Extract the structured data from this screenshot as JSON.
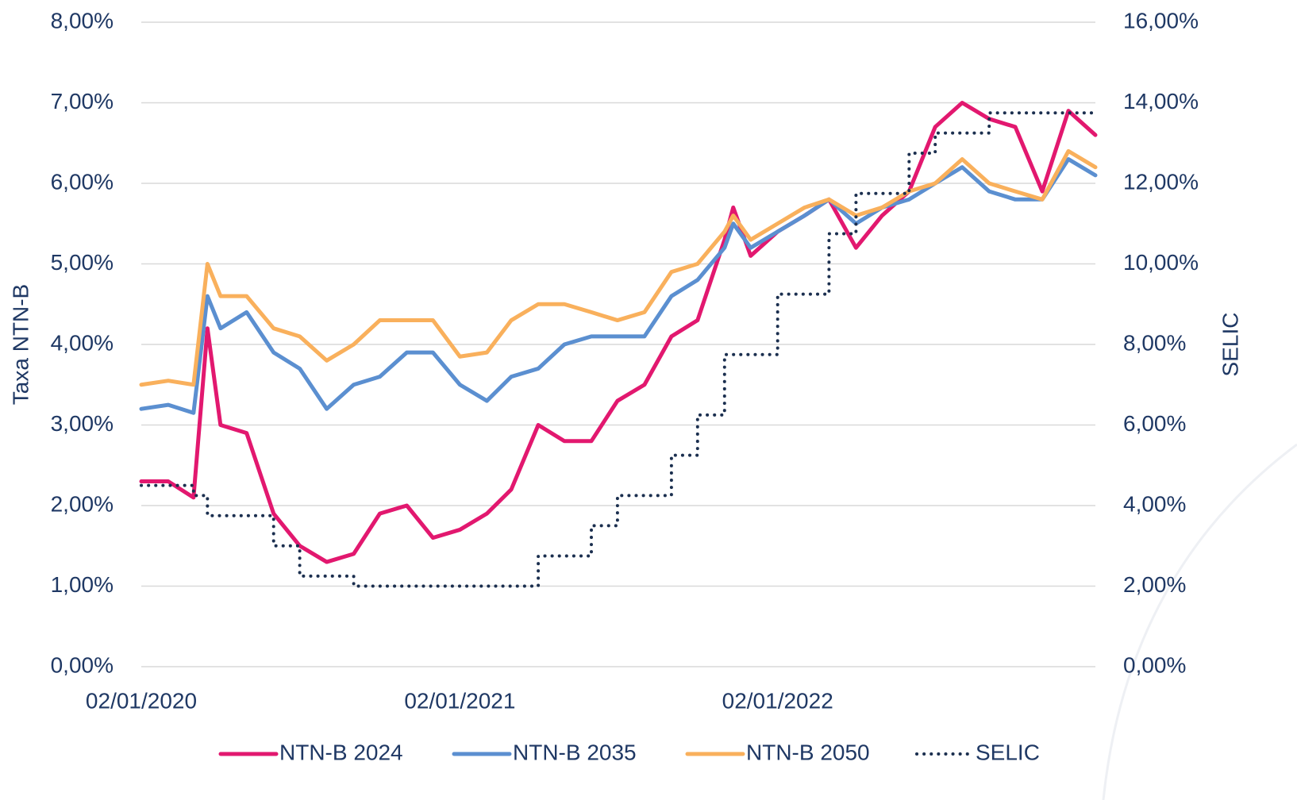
{
  "chart_data": {
    "type": "line",
    "y_label": "Taxa NTN-B",
    "y2_label": "SELIC",
    "x": [
      "02/01/2020",
      "02/02/2020",
      "02/03/2020",
      "18/03/2020",
      "02/04/2020",
      "02/05/2020",
      "02/06/2020",
      "02/07/2020",
      "02/08/2020",
      "02/09/2020",
      "02/10/2020",
      "02/11/2020",
      "02/12/2020",
      "02/01/2021",
      "02/02/2021",
      "02/03/2021",
      "02/04/2021",
      "02/05/2021",
      "02/06/2021",
      "02/07/2021",
      "02/08/2021",
      "02/09/2021",
      "02/10/2021",
      "02/11/2021",
      "12/11/2021",
      "02/12/2021",
      "02/01/2022",
      "02/02/2022",
      "02/03/2022",
      "02/04/2022",
      "02/05/2022",
      "02/06/2022",
      "02/07/2022",
      "02/08/2022",
      "02/09/2022",
      "02/10/2022",
      "02/11/2022",
      "02/12/2022",
      "02/01/2023"
    ],
    "xlim": [
      "02/01/2020",
      "02/01/2023"
    ],
    "xticks": [
      "02/01/2020",
      "02/01/2021",
      "02/01/2022"
    ],
    "ylim": [
      0,
      8
    ],
    "yticks": [
      {
        "value": 0,
        "label": "0,00%"
      },
      {
        "value": 1,
        "label": "1,00%"
      },
      {
        "value": 2,
        "label": "2,00%"
      },
      {
        "value": 3,
        "label": "3,00%"
      },
      {
        "value": 4,
        "label": "4,00%"
      },
      {
        "value": 5,
        "label": "5,00%"
      },
      {
        "value": 6,
        "label": "6,00%"
      },
      {
        "value": 7,
        "label": "7,00%"
      },
      {
        "value": 8,
        "label": "8,00%"
      }
    ],
    "y2lim": [
      0,
      16
    ],
    "y2ticks": [
      {
        "value": 0,
        "label": "0,00%"
      },
      {
        "value": 2,
        "label": "2,00%"
      },
      {
        "value": 4,
        "label": "4,00%"
      },
      {
        "value": 6,
        "label": "6,00%"
      },
      {
        "value": 8,
        "label": "8,00%"
      },
      {
        "value": 10,
        "label": "10,00%"
      },
      {
        "value": 12,
        "label": "12,00%"
      },
      {
        "value": 14,
        "label": "14,00%"
      },
      {
        "value": 16,
        "label": "16,00%"
      }
    ],
    "grid": true,
    "legend": "bottom",
    "series": [
      {
        "name": "NTN-B 2024",
        "color": "#e2186f",
        "values": [
          2.3,
          2.3,
          2.1,
          4.2,
          3.0,
          2.9,
          1.9,
          1.5,
          1.3,
          1.4,
          1.9,
          2.0,
          1.6,
          1.7,
          1.9,
          2.2,
          3.0,
          2.8,
          2.8,
          3.3,
          3.5,
          4.1,
          4.3,
          5.3,
          5.7,
          5.1,
          5.4,
          5.6,
          5.8,
          5.2,
          5.6,
          5.9,
          6.7,
          7.0,
          6.8,
          6.7,
          5.9,
          6.9,
          6.6
        ]
      },
      {
        "name": "NTN-B 2035",
        "color": "#5b8fd0",
        "values": [
          3.2,
          3.25,
          3.15,
          4.6,
          4.2,
          4.4,
          3.9,
          3.7,
          3.2,
          3.5,
          3.6,
          3.9,
          3.9,
          3.5,
          3.3,
          3.6,
          3.7,
          4.0,
          4.1,
          4.1,
          4.1,
          4.6,
          4.8,
          5.2,
          5.5,
          5.2,
          5.4,
          5.6,
          5.8,
          5.5,
          5.7,
          5.8,
          6.0,
          6.2,
          5.9,
          5.8,
          5.8,
          6.3,
          6.1
        ]
      },
      {
        "name": "NTN-B 2050",
        "color": "#f9b05c",
        "values": [
          3.5,
          3.55,
          3.5,
          5.0,
          4.6,
          4.6,
          4.2,
          4.1,
          3.8,
          4.0,
          4.3,
          4.3,
          4.3,
          3.85,
          3.9,
          4.3,
          4.5,
          4.5,
          4.4,
          4.3,
          4.4,
          4.9,
          5.0,
          5.4,
          5.6,
          5.3,
          5.5,
          5.7,
          5.8,
          5.6,
          5.7,
          5.9,
          6.0,
          6.3,
          6.0,
          5.9,
          5.8,
          6.4,
          6.2
        ]
      },
      {
        "name": "SELIC",
        "color": "#1b2f4f",
        "axis": "y2",
        "line_style": "dotted",
        "step": true,
        "values": [
          4.5,
          4.5,
          4.25,
          3.75,
          3.75,
          3.75,
          3.0,
          2.25,
          2.25,
          2.0,
          2.0,
          2.0,
          2.0,
          2.0,
          2.0,
          2.0,
          2.75,
          2.75,
          3.5,
          4.25,
          4.25,
          5.25,
          6.25,
          7.75,
          7.75,
          7.75,
          9.25,
          9.25,
          10.75,
          11.75,
          11.75,
          12.75,
          13.25,
          13.25,
          13.75,
          13.75,
          13.75,
          13.75,
          13.75
        ]
      }
    ]
  }
}
